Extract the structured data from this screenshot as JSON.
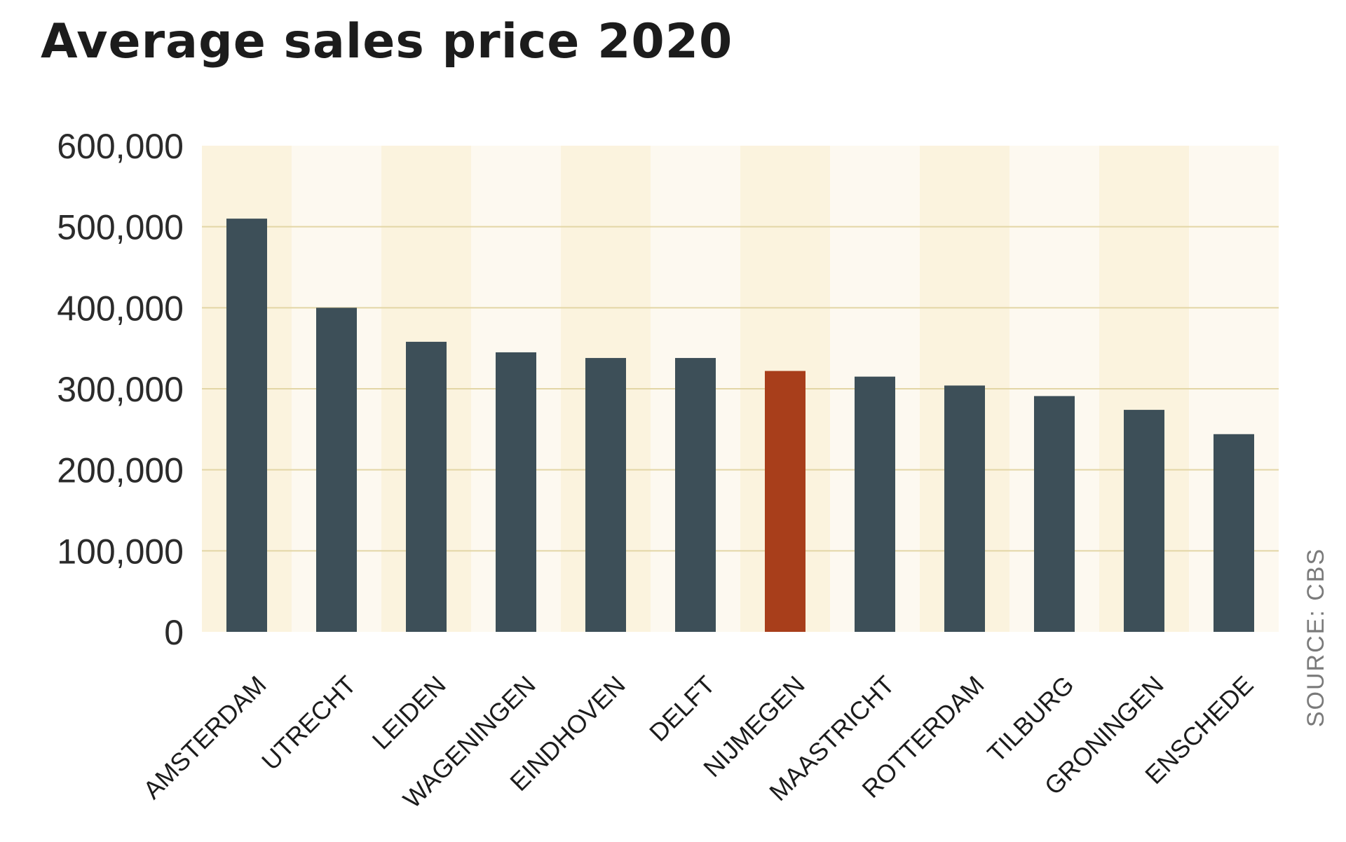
{
  "chart_data": {
    "type": "bar",
    "title": "Average sales price 2020",
    "categories": [
      "AMSTERDAM",
      "UTRECHT",
      "LEIDEN",
      "WAGENINGEN",
      "EINDHOVEN",
      "DELFT",
      "NIJMEGEN",
      "MAASTRICHT",
      "ROTTERDAM",
      "TILBURG",
      "GRONINGEN",
      "ENSCHEDE"
    ],
    "values": [
      510000,
      400000,
      358000,
      345000,
      338000,
      338000,
      322000,
      315000,
      304000,
      291000,
      274000,
      244000
    ],
    "highlight_category": "NIJMEGEN",
    "ylim": [
      0,
      600000
    ],
    "yticks": [
      "0",
      "100,000",
      "200,000",
      "300,000",
      "400,000",
      "500,000",
      "600,000"
    ],
    "xlabel": "",
    "ylabel": "",
    "grid": true,
    "source": "SOURCE: CBS",
    "colors": {
      "bar": "#3d4f58",
      "highlight": "#a83e1b",
      "band_dark": "#fbf3de",
      "band_light": "#fdf9f0",
      "grid": "#e3d6a6"
    }
  }
}
